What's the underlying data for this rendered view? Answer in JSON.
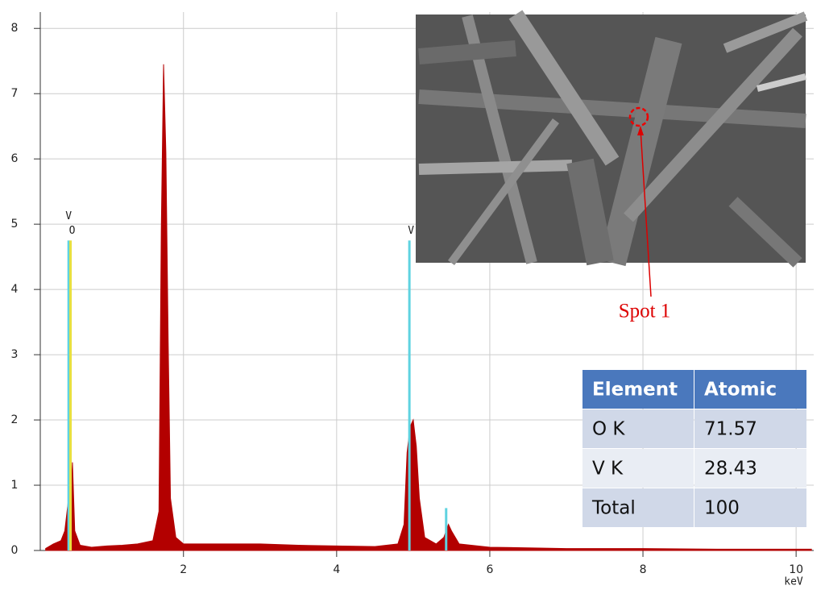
{
  "chart_data": {
    "type": "area",
    "xlabel": "keV",
    "x": [
      0.2,
      0.3,
      0.4,
      0.45,
      0.5,
      0.52,
      0.55,
      0.58,
      0.65,
      0.8,
      1.0,
      1.2,
      1.4,
      1.6,
      1.68,
      1.71,
      1.74,
      1.77,
      1.8,
      1.83,
      1.9,
      2.0,
      2.5,
      3.0,
      3.5,
      4.0,
      4.5,
      4.8,
      4.88,
      4.92,
      4.96,
      5.0,
      5.04,
      5.08,
      5.15,
      5.3,
      5.4,
      5.46,
      5.5,
      5.6,
      6.0,
      7.0,
      8.0,
      9.0,
      10.0,
      10.2
    ],
    "values": [
      0.03,
      0.1,
      0.15,
      0.3,
      0.8,
      0.6,
      1.35,
      0.3,
      0.08,
      0.05,
      0.07,
      0.08,
      0.1,
      0.15,
      0.6,
      4.9,
      7.45,
      6.1,
      3.2,
      0.8,
      0.2,
      0.1,
      0.1,
      0.1,
      0.08,
      0.07,
      0.06,
      0.1,
      0.4,
      1.5,
      1.9,
      2.0,
      1.6,
      0.8,
      0.2,
      0.1,
      0.2,
      0.4,
      0.3,
      0.1,
      0.05,
      0.03,
      0.03,
      0.02,
      0.02,
      0.02
    ],
    "color": "#b30000",
    "xlim": [
      0.13,
      10.23
    ],
    "ylim": [
      0,
      8.25
    ],
    "xticks": [
      2,
      4,
      6,
      8,
      10
    ],
    "yticks": [
      0,
      1,
      2,
      3,
      4,
      5,
      6,
      7,
      8
    ],
    "grid": true,
    "markers": {
      "labels": [
        "V",
        "O",
        "V",
        null
      ],
      "x": [
        0.5,
        0.525,
        4.95,
        5.43
      ],
      "values": [
        4.75,
        4.75,
        4.75,
        0.65
      ],
      "colors": [
        "#5fd3e0",
        "#e8e040",
        "#5fd3e0",
        "#5fd3e0"
      ]
    },
    "annotation": "Spot 1"
  },
  "table": {
    "header": [
      "Element",
      "Atomic"
    ],
    "rows": [
      [
        "O K",
        71.57
      ],
      [
        "V K",
        28.43
      ],
      [
        "Total",
        100
      ]
    ]
  }
}
